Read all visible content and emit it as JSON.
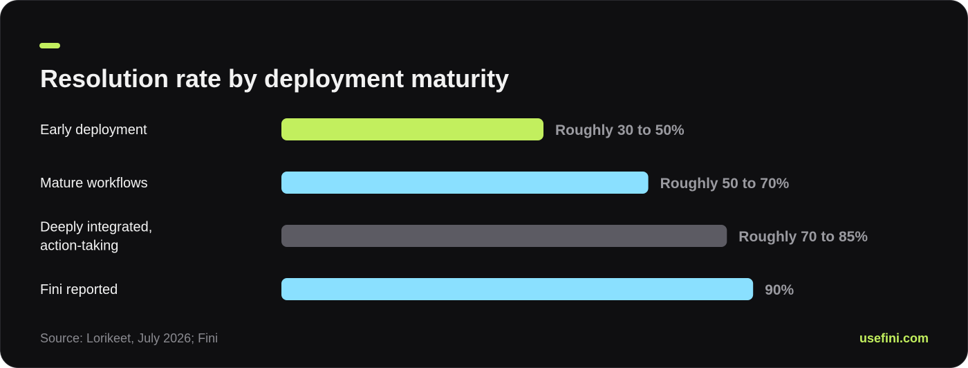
{
  "title": "Resolution rate by deployment maturity",
  "footer": {
    "source": "Source: Lorikeet, July 2026; Fini",
    "brand": "usefini.com"
  },
  "colors": {
    "background": "#0f0f11",
    "accent": "#c2ef5e",
    "blue": "#8ae0ff",
    "gray": "#5c5b63",
    "value_text": "#9a9aa0"
  },
  "chart_data": {
    "type": "bar",
    "orientation": "horizontal",
    "title": "Resolution rate by deployment maturity",
    "grid": false,
    "xlim": [
      0,
      100
    ],
    "categories": [
      [
        "Early deployment"
      ],
      [
        "Mature workflows"
      ],
      [
        "Deeply integrated,",
        "action-taking"
      ],
      [
        "Fini reported"
      ]
    ],
    "values": [
      50,
      70,
      85,
      90
    ],
    "ranges": [
      [
        30,
        50
      ],
      [
        50,
        70
      ],
      [
        70,
        85
      ],
      [
        90,
        90
      ]
    ],
    "value_labels": [
      "Roughly 30 to 50%",
      "Roughly 50 to 70%",
      "Roughly 70 to 85%",
      "90%"
    ],
    "bar_colors": [
      "#c2ef5e",
      "#8ae0ff",
      "#5c5b63",
      "#8ae0ff"
    ]
  }
}
